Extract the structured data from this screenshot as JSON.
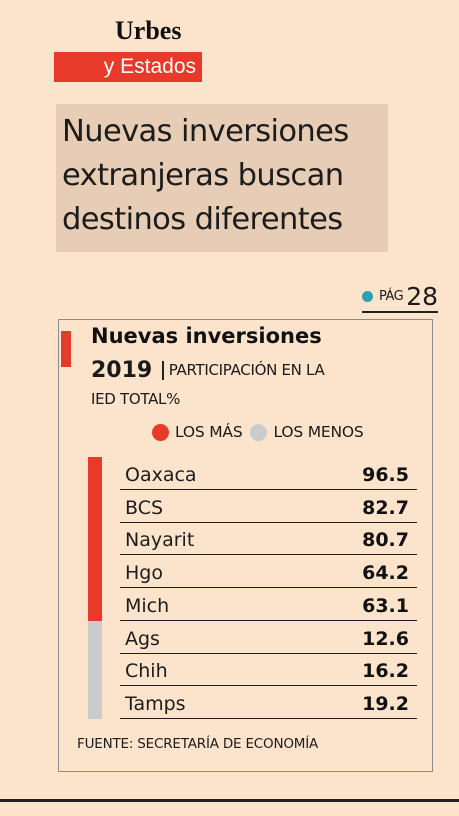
{
  "section": {
    "top": "Urbes",
    "bottom": "y Estados"
  },
  "headline": "Nuevas inversiones extranjeras buscan destinos diferentes",
  "page_ref": {
    "label": "PÁG",
    "number": "28"
  },
  "chart_data": {
    "type": "table",
    "title": "Nuevas inversiones",
    "year": "2019",
    "subtitle_line1": "PARTICIPACIÓN EN LA",
    "subtitle_line2": "IED TOTAL%",
    "legend": [
      {
        "label": "LOS MÁS",
        "color": "#e83a2a"
      },
      {
        "label": "LOS MENOS",
        "color": "#c9cccb"
      }
    ],
    "categories": [
      "Oaxaca",
      "BCS",
      "Nayarit",
      "Hgo",
      "Mich",
      "Ags",
      "Chih",
      "Tamps"
    ],
    "values": [
      "96.5",
      "82.7",
      "80.7",
      "64.2",
      "63.1",
      "12.6",
      "16.2",
      "19.2"
    ],
    "groups": [
      {
        "label": "LOS MÁS",
        "start": 0,
        "end": 4,
        "color": "#e83a2a"
      },
      {
        "label": "LOS MENOS",
        "start": 5,
        "end": 7,
        "color": "#c9cccb"
      }
    ],
    "source": "FUENTE: SECRETARÍA DE ECONOMÍA"
  },
  "colors": {
    "background": "#fce3cc",
    "accent_red": "#e83a2a",
    "accent_gray": "#c9cccb",
    "headline_box": "#e8cdb6",
    "page_dot": "#2f9fb6"
  },
  "icons": {
    "page_dot": "dot-icon"
  }
}
